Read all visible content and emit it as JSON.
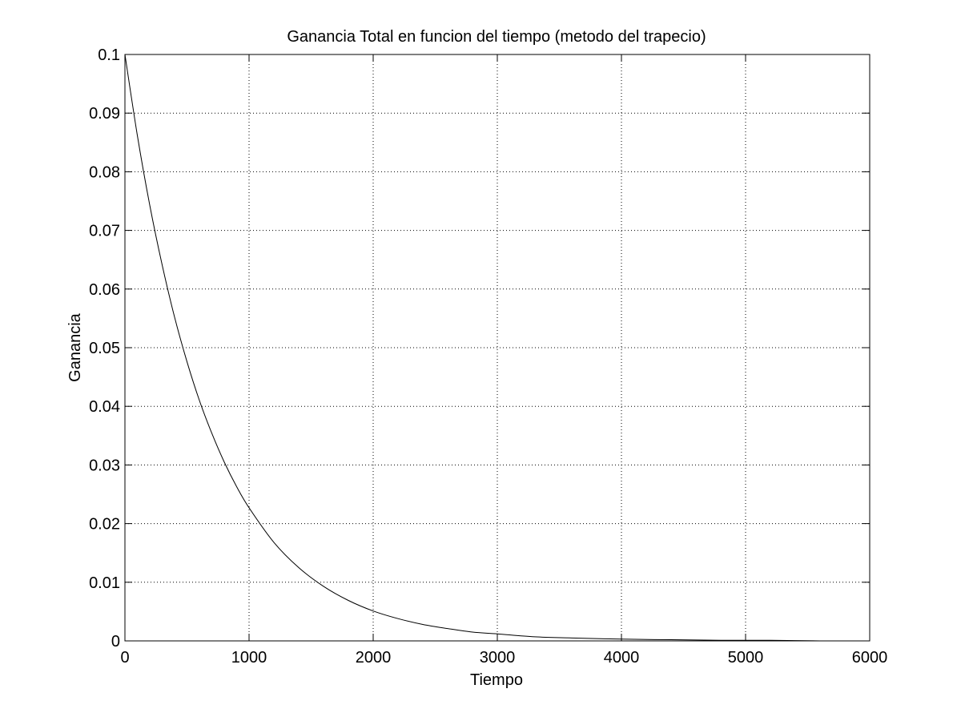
{
  "chart_data": {
    "type": "line",
    "title": "Ganancia Total en funcion del tiempo (metodo del trapecio)",
    "xlabel": "Tiempo",
    "ylabel": "Ganancia",
    "xlim": [
      0,
      6000
    ],
    "ylim": [
      0,
      0.1
    ],
    "xticks": [
      0,
      1000,
      2000,
      3000,
      4000,
      5000,
      6000
    ],
    "xtick_labels": [
      "0",
      "1000",
      "2000",
      "3000",
      "4000",
      "5000",
      "6000"
    ],
    "yticks": [
      0,
      0.01,
      0.02,
      0.03,
      0.04,
      0.05,
      0.06,
      0.07,
      0.08,
      0.09,
      0.1
    ],
    "ytick_labels": [
      "0",
      "0.01",
      "0.02",
      "0.03",
      "0.04",
      "0.05",
      "0.06",
      "0.07",
      "0.08",
      "0.09",
      "0.1"
    ],
    "grid": true,
    "series": [
      {
        "color": "#000000",
        "x": [
          0,
          100,
          200,
          300,
          400,
          500,
          600,
          700,
          800,
          900,
          1000,
          1200,
          1400,
          1600,
          1800,
          2000,
          2200,
          2400,
          2600,
          2800,
          3000,
          3300,
          3600,
          4000,
          4400,
          4800,
          5200,
          5600,
          6000
        ],
        "y": [
          0.1,
          0.0862,
          0.0743,
          0.0641,
          0.0552,
          0.0476,
          0.041,
          0.0354,
          0.0305,
          0.0263,
          0.0227,
          0.0168,
          0.0125,
          0.0093,
          0.0069,
          0.0051,
          0.0038,
          0.0028,
          0.0021,
          0.0015,
          0.0012,
          0.0007,
          0.0005,
          0.0003,
          0.0002,
          0.0001,
          0.0001,
          0.0,
          0.0
        ]
      }
    ]
  }
}
